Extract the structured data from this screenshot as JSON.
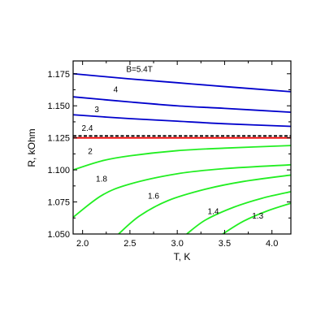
{
  "chart_data": {
    "type": "line",
    "xlabel": "T, K",
    "ylabel": "R, kOhm",
    "xlim": [
      1.9,
      4.2
    ],
    "ylim": [
      1.05,
      1.185
    ],
    "x_ticks": [
      2.0,
      2.5,
      3.0,
      3.5,
      4.0
    ],
    "x_tick_labels": [
      "2.0",
      "2.5",
      "3.0",
      "3.5",
      "4.0"
    ],
    "y_ticks": [
      1.05,
      1.075,
      1.1,
      1.125,
      1.15,
      1.175
    ],
    "y_tick_labels": [
      "1.050",
      "1.075",
      "1.100",
      "1.125",
      "1.150",
      "1.175"
    ],
    "grid": false,
    "series": [
      {
        "name": "B=5.4T",
        "color": "#0000cc",
        "style": "solid",
        "x": [
          1.9,
          2.5,
          3.0,
          3.5,
          4.2
        ],
        "y": [
          1.175,
          1.171,
          1.168,
          1.165,
          1.161
        ]
      },
      {
        "name": "4",
        "color": "#0000cc",
        "style": "solid",
        "x": [
          1.9,
          2.5,
          3.0,
          3.5,
          4.2
        ],
        "y": [
          1.157,
          1.153,
          1.15,
          1.148,
          1.145
        ]
      },
      {
        "name": "3",
        "color": "#0000cc",
        "style": "solid",
        "x": [
          1.9,
          2.5,
          3.0,
          3.5,
          4.2
        ],
        "y": [
          1.143,
          1.14,
          1.138,
          1.136,
          1.134
        ]
      },
      {
        "name": "2.4",
        "color": "#000000",
        "style": "dashed",
        "x": [
          1.9,
          4.2
        ],
        "y": [
          1.1265,
          1.1265
        ]
      },
      {
        "name": "",
        "color": "#ee0000",
        "style": "solid",
        "x": [
          1.9,
          4.2
        ],
        "y": [
          1.125,
          1.125
        ]
      },
      {
        "name": "2",
        "color": "#22ee22",
        "style": "solid",
        "x": [
          1.9,
          2.2,
          2.5,
          3.0,
          3.5,
          4.2
        ],
        "y": [
          1.1,
          1.107,
          1.111,
          1.115,
          1.117,
          1.119
        ]
      },
      {
        "name": "1.8",
        "color": "#22ee22",
        "style": "solid",
        "x": [
          1.9,
          2.2,
          2.5,
          3.0,
          3.5,
          4.2
        ],
        "y": [
          1.063,
          1.08,
          1.089,
          1.097,
          1.101,
          1.104
        ]
      },
      {
        "name": "1.6",
        "color": "#22ee22",
        "style": "solid",
        "x": [
          2.38,
          2.6,
          2.9,
          3.3,
          3.7,
          4.2
        ],
        "y": [
          1.05,
          1.064,
          1.076,
          1.085,
          1.091,
          1.096
        ]
      },
      {
        "name": "1.4",
        "color": "#22ee22",
        "style": "solid",
        "x": [
          3.1,
          3.3,
          3.6,
          3.9,
          4.2
        ],
        "y": [
          1.05,
          1.061,
          1.071,
          1.078,
          1.083
        ]
      },
      {
        "name": "1.3",
        "color": "#22ee22",
        "style": "solid",
        "x": [
          3.48,
          3.7,
          3.95,
          4.2
        ],
        "y": [
          1.05,
          1.06,
          1.068,
          1.074
        ]
      }
    ],
    "curve_labels": [
      {
        "text": "B=5.4T",
        "x": 2.6,
        "y": 1.1765
      },
      {
        "text": "4",
        "x": 2.35,
        "y": 1.1605
      },
      {
        "text": "3",
        "x": 2.15,
        "y": 1.145
      },
      {
        "text": "2.4",
        "x": 2.05,
        "y": 1.1305
      },
      {
        "text": "2",
        "x": 2.08,
        "y": 1.1125
      },
      {
        "text": "1.8",
        "x": 2.2,
        "y": 1.091
      },
      {
        "text": "1.6",
        "x": 2.75,
        "y": 1.0775
      },
      {
        "text": "1.4",
        "x": 3.38,
        "y": 1.0655
      },
      {
        "text": "1.3",
        "x": 3.85,
        "y": 1.062
      }
    ]
  }
}
